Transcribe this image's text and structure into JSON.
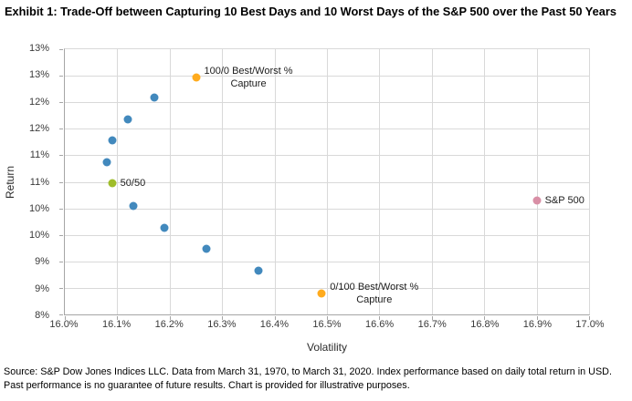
{
  "title": "Exhibit 1: Trade-Off between Capturing 10 Best Days and 10 Worst Days of the S&P 500 over the Past 50 Years",
  "footer": "Source: S&P Dow Jones Indices LLC. Data from March 31, 1970, to March 31, 2020. Index performance based on daily total return in USD. Past performance is no guarantee of future results. Chart is provided for illustrative purposes.",
  "colors": {
    "portfolio_point": "#4289BD",
    "endpoint_orange": "#FFAB1E",
    "fifty_fifty_green": "#9FBD2A",
    "sp500_pink": "#D98FA6",
    "gridline": "#D9D9D9",
    "axis_line": "#A6A6A6"
  },
  "chart_data": {
    "type": "scatter",
    "title": "Exhibit 1: Trade-Off between Capturing 10 Best Days and 10 Worst Days of the S&P 500 over the Past 50 Years",
    "xlabel": "Volatility",
    "ylabel": "Return",
    "xlim": [
      16.0,
      17.0
    ],
    "ylim": [
      8.0,
      13.0
    ],
    "grid": true,
    "x_ticks": [
      {
        "value": 16.0,
        "label": "16.0%"
      },
      {
        "value": 16.1,
        "label": "16.1%"
      },
      {
        "value": 16.2,
        "label": "16.2%"
      },
      {
        "value": 16.3,
        "label": "16.3%"
      },
      {
        "value": 16.4,
        "label": "16.4%"
      },
      {
        "value": 16.5,
        "label": "16.5%"
      },
      {
        "value": 16.6,
        "label": "16.6%"
      },
      {
        "value": 16.7,
        "label": "16.7%"
      },
      {
        "value": 16.8,
        "label": "16.8%"
      },
      {
        "value": 16.9,
        "label": "16.9%"
      },
      {
        "value": 17.0,
        "label": "17.0%"
      }
    ],
    "y_ticks": [
      {
        "value": 13.0,
        "label": "13%"
      },
      {
        "value": 12.5,
        "label": "13%"
      },
      {
        "value": 12.0,
        "label": "12%"
      },
      {
        "value": 11.5,
        "label": "12%"
      },
      {
        "value": 11.0,
        "label": "11%"
      },
      {
        "value": 10.5,
        "label": "11%"
      },
      {
        "value": 10.0,
        "label": "10%"
      },
      {
        "value": 9.5,
        "label": "10%"
      },
      {
        "value": 9.0,
        "label": "9%"
      },
      {
        "value": 8.5,
        "label": "9%"
      },
      {
        "value": 8.0,
        "label": "8%"
      }
    ],
    "points": [
      {
        "x": 16.25,
        "y": 12.46,
        "color": "#FFAB1E",
        "label": "100/0 Best/Worst %\nCapture"
      },
      {
        "x": 16.17,
        "y": 12.09,
        "color": "#4289BD"
      },
      {
        "x": 16.12,
        "y": 11.67,
        "color": "#4289BD"
      },
      {
        "x": 16.09,
        "y": 11.29,
        "color": "#4289BD"
      },
      {
        "x": 16.08,
        "y": 10.87,
        "color": "#4289BD"
      },
      {
        "x": 16.09,
        "y": 10.47,
        "color": "#9FBD2A",
        "label": "50/50"
      },
      {
        "x": 16.13,
        "y": 10.05,
        "color": "#4289BD"
      },
      {
        "x": 16.19,
        "y": 9.64,
        "color": "#4289BD"
      },
      {
        "x": 16.27,
        "y": 9.24,
        "color": "#4289BD"
      },
      {
        "x": 16.37,
        "y": 8.82,
        "color": "#4289BD"
      },
      {
        "x": 16.49,
        "y": 8.4,
        "color": "#FFAB1E",
        "label": "0/100 Best/Worst %\nCapture"
      },
      {
        "x": 16.9,
        "y": 10.14,
        "color": "#D98FA6",
        "label": "S&P 500"
      }
    ]
  }
}
